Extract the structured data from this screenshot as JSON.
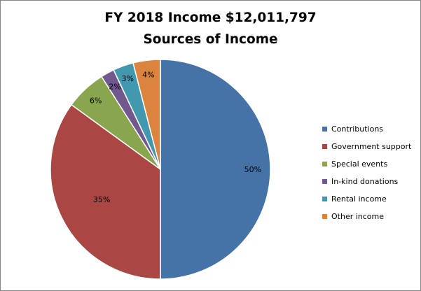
{
  "chart_data": {
    "type": "pie",
    "title": "FY 2018 Income $12,011,797",
    "subtitle": "Sources of Income",
    "categories": [
      "Contributions",
      "Government support",
      "Special events",
      "In-kind donations",
      "Rental income",
      "Other income"
    ],
    "values": [
      50,
      35,
      6,
      2,
      3,
      4
    ],
    "labels": [
      "50%",
      "35%",
      "6%",
      "2%",
      "3%",
      "4%"
    ],
    "colors": [
      "#4572a7",
      "#aa4643",
      "#89a54e",
      "#71588f",
      "#4198af",
      "#db843d"
    ],
    "start_angle_deg": 0,
    "direction": "clockwise",
    "legend_position": "right"
  }
}
